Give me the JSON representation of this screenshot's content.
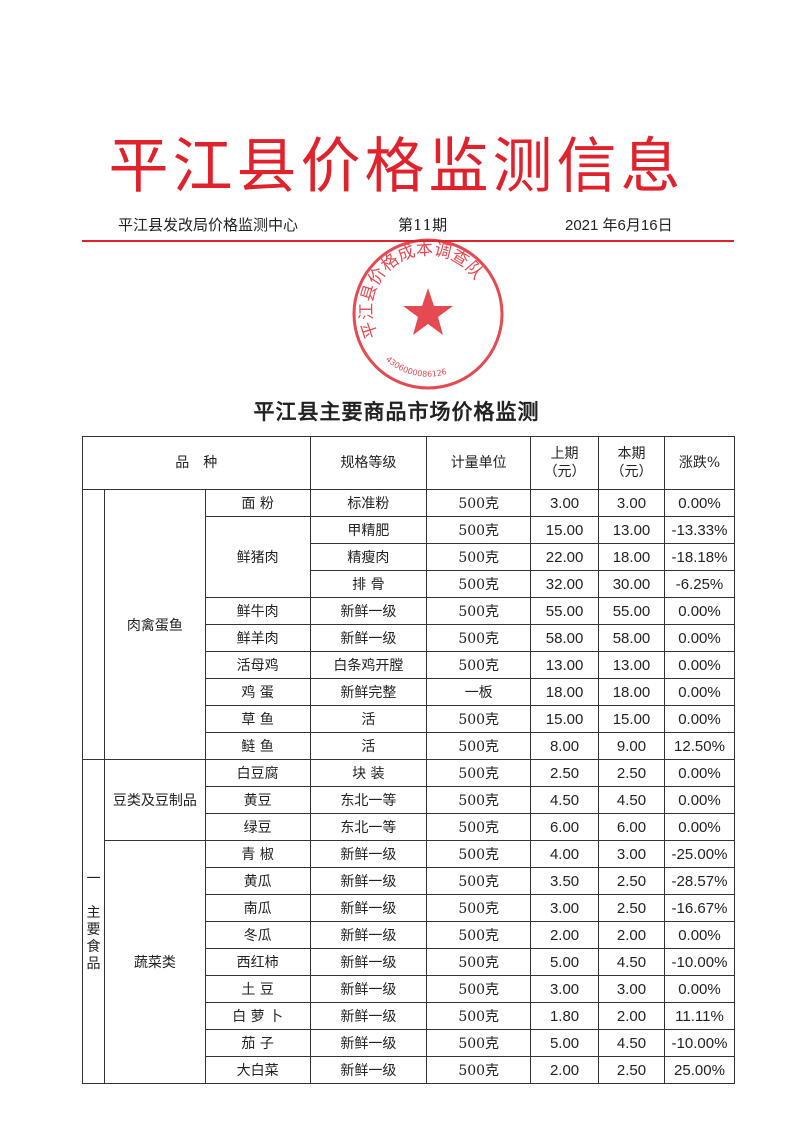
{
  "header": {
    "masthead": "平江县价格监测信息",
    "issuer": "平江县发改局价格监测中心",
    "issue": "第11期",
    "date": "2021 年6月16日",
    "stamp_text": "平江县价格成本调查队",
    "stamp_number": "4306000086126",
    "accent_color": "#e0222d"
  },
  "title": "平江县主要商品市场价格监测",
  "table": {
    "columns": [
      "品　种",
      "规格等级",
      "计量单位",
      "上期\n（元）",
      "本期\n（元）",
      "涨跌%"
    ],
    "sections": [
      {
        "label": "",
        "categories": [
          {
            "name": "肉禽蛋鱼",
            "items": [
              {
                "name": "面 粉",
                "rows": [
                  [
                    "标准粉",
                    "500克",
                    "3.00",
                    "3.00",
                    "0.00%"
                  ]
                ]
              },
              {
                "name": "鲜猪肉",
                "rows": [
                  [
                    "甲精肥",
                    "500克",
                    "15.00",
                    "13.00",
                    "-13.33%"
                  ],
                  [
                    "精瘦肉",
                    "500克",
                    "22.00",
                    "18.00",
                    "-18.18%"
                  ],
                  [
                    "排 骨",
                    "500克",
                    "32.00",
                    "30.00",
                    "-6.25%"
                  ]
                ]
              },
              {
                "name": "鲜牛肉",
                "rows": [
                  [
                    "新鲜一级",
                    "500克",
                    "55.00",
                    "55.00",
                    "0.00%"
                  ]
                ]
              },
              {
                "name": "鲜羊肉",
                "rows": [
                  [
                    "新鲜一级",
                    "500克",
                    "58.00",
                    "58.00",
                    "0.00%"
                  ]
                ]
              },
              {
                "name": "活母鸡",
                "rows": [
                  [
                    "白条鸡开膛",
                    "500克",
                    "13.00",
                    "13.00",
                    "0.00%"
                  ]
                ]
              },
              {
                "name": "鸡 蛋",
                "rows": [
                  [
                    "新鲜完整",
                    "一板",
                    "18.00",
                    "18.00",
                    "0.00%"
                  ]
                ]
              },
              {
                "name": "草 鱼",
                "rows": [
                  [
                    "活",
                    "500克",
                    "15.00",
                    "15.00",
                    "0.00%"
                  ]
                ]
              },
              {
                "name": "鲢 鱼",
                "rows": [
                  [
                    "活",
                    "500克",
                    "8.00",
                    "9.00",
                    "12.50%"
                  ]
                ]
              }
            ]
          }
        ]
      },
      {
        "label": "一\n\n主\n要\n食\n品",
        "categories": [
          {
            "name": "豆类及豆制品",
            "items": [
              {
                "name": "白豆腐",
                "rows": [
                  [
                    "块 装",
                    "500克",
                    "2.50",
                    "2.50",
                    "0.00%"
                  ]
                ]
              },
              {
                "name": "黄豆",
                "rows": [
                  [
                    "东北一等",
                    "500克",
                    "4.50",
                    "4.50",
                    "0.00%"
                  ]
                ]
              },
              {
                "name": "绿豆",
                "rows": [
                  [
                    "东北一等",
                    "500克",
                    "6.00",
                    "6.00",
                    "0.00%"
                  ]
                ]
              }
            ]
          },
          {
            "name": "蔬菜类",
            "items": [
              {
                "name": "青 椒",
                "rows": [
                  [
                    "新鲜一级",
                    "500克",
                    "4.00",
                    "3.00",
                    "-25.00%"
                  ]
                ]
              },
              {
                "name": "黄瓜",
                "rows": [
                  [
                    "新鲜一级",
                    "500克",
                    "3.50",
                    "2.50",
                    "-28.57%"
                  ]
                ]
              },
              {
                "name": "南瓜",
                "rows": [
                  [
                    "新鲜一级",
                    "500克",
                    "3.00",
                    "2.50",
                    "-16.67%"
                  ]
                ]
              },
              {
                "name": "冬瓜",
                "rows": [
                  [
                    "新鲜一级",
                    "500克",
                    "2.00",
                    "2.00",
                    "0.00%"
                  ]
                ]
              },
              {
                "name": "西红柿",
                "rows": [
                  [
                    "新鲜一级",
                    "500克",
                    "5.00",
                    "4.50",
                    "-10.00%"
                  ]
                ]
              },
              {
                "name": "土 豆",
                "rows": [
                  [
                    "新鲜一级",
                    "500克",
                    "3.00",
                    "3.00",
                    "0.00%"
                  ]
                ]
              },
              {
                "name": "白 萝 卜",
                "rows": [
                  [
                    "新鲜一级",
                    "500克",
                    "1.80",
                    "2.00",
                    "11.11%"
                  ]
                ]
              },
              {
                "name": "茄 子",
                "rows": [
                  [
                    "新鲜一级",
                    "500克",
                    "5.00",
                    "4.50",
                    "-10.00%"
                  ]
                ]
              },
              {
                "name": "大白菜",
                "rows": [
                  [
                    "新鲜一级",
                    "500克",
                    "2.00",
                    "2.50",
                    "25.00%"
                  ]
                ]
              }
            ]
          }
        ]
      }
    ]
  }
}
